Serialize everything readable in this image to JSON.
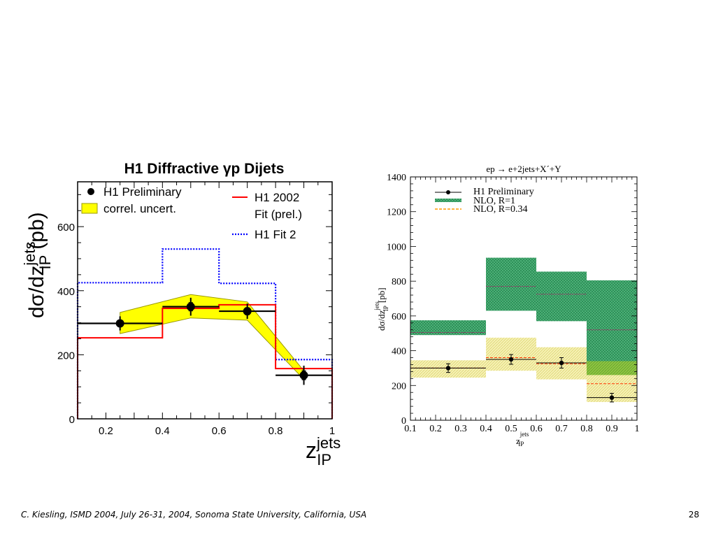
{
  "chart_data": [
    {
      "type": "step",
      "title": "H1 Diffractive γp Dijets",
      "ylabel": "dσ/dz",
      "ylabel_sup": "jets",
      "ylabel_sub": "IP",
      "ylabel_unit": "(pb)",
      "xlabel": "z",
      "xlabel_sup": "jets",
      "xlabel_sub": "IP",
      "xlim": [
        0.1,
        1.0
      ],
      "ylim": [
        0,
        740
      ],
      "xticks": [
        "0.2",
        "0.4",
        "0.6",
        "0.8",
        "1"
      ],
      "yticks": [
        "0",
        "200",
        "400",
        "600"
      ],
      "grid": false,
      "legend": [
        {
          "label": "H1 Preliminary",
          "marker": "dot"
        },
        {
          "label": "correl. uncert.",
          "marker": "yellow-box"
        },
        {
          "label": "H1 2002",
          "marker": "red-line"
        },
        {
          "label": "Fit (prel.)",
          "marker": "none"
        },
        {
          "label": "H1 Fit 2",
          "marker": "blue-dotted"
        }
      ],
      "colors": {
        "data": "#000000",
        "band": "#ffff00",
        "band_edge": "#999900",
        "fit2002": "#ff0000",
        "fit2": "#0000ff"
      },
      "series": [
        {
          "name": "H1 Preliminary",
          "kind": "points",
          "bins": [
            [
              0.1,
              0.4
            ],
            [
              0.4,
              0.6
            ],
            [
              0.6,
              0.8
            ],
            [
              0.8,
              1.0
            ]
          ],
          "x": [
            0.25,
            0.5,
            0.7,
            0.9
          ],
          "y": [
            298,
            350,
            336,
            136
          ],
          "yerr": [
            22,
            28,
            24,
            30
          ]
        },
        {
          "name": "correl. uncert.",
          "kind": "band",
          "x": [
            0.25,
            0.5,
            0.7,
            0.9
          ],
          "lo": [
            266,
            315,
            308,
            123
          ],
          "hi": [
            332,
            388,
            365,
            150
          ]
        },
        {
          "name": "H1 2002 Fit (prel.)",
          "kind": "step",
          "edges": [
            0.1,
            0.4,
            0.6,
            0.8,
            1.0
          ],
          "values": [
            253,
            345,
            356,
            157
          ]
        },
        {
          "name": "H1 Fit 2",
          "kind": "step",
          "edges": [
            0.1,
            0.4,
            0.6,
            0.8,
            1.0
          ],
          "values": [
            425,
            530,
            423,
            185
          ]
        }
      ]
    },
    {
      "type": "step",
      "title": "ep → e+2jets+X´+Y",
      "ylabel": "dσ/dz",
      "ylabel_sup": "jets",
      "ylabel_sub": "IP",
      "ylabel_unit": "[pb]",
      "xlabel": "z",
      "xlabel_sup": "jets",
      "xlabel_sub": "IP",
      "xlim": [
        0.1,
        1.0
      ],
      "ylim": [
        0,
        1400
      ],
      "xticks": [
        "0.1",
        "0.2",
        "0.3",
        "0.4",
        "0.5",
        "0.6",
        "0.7",
        "0.8",
        "0.9",
        "1"
      ],
      "yticks": [
        "0",
        "200",
        "400",
        "600",
        "800",
        "1000",
        "1200",
        "1400"
      ],
      "grid": false,
      "legend": [
        {
          "label": "H1 Preliminary",
          "marker": "dot-err"
        },
        {
          "label": "NLO, R=1",
          "marker": "green-hatch"
        },
        {
          "label": "NLO, R=0.34",
          "marker": "orange-dashed"
        }
      ],
      "colors": {
        "data": "#000000",
        "nlo_r1": "#2e9e5e",
        "nlo_r1_line": "#993366",
        "nlo_r034_band": "#f0e88a",
        "nlo_r034_line": "#ff3300"
      },
      "series": [
        {
          "name": "H1 Preliminary",
          "kind": "points",
          "bins": [
            [
              0.1,
              0.4
            ],
            [
              0.4,
              0.6
            ],
            [
              0.6,
              0.8
            ],
            [
              0.8,
              1.0
            ]
          ],
          "x": [
            0.25,
            0.5,
            0.7,
            0.9
          ],
          "y": [
            300,
            350,
            330,
            130
          ],
          "yerr": [
            25,
            28,
            30,
            25
          ]
        },
        {
          "name": "NLO, R=1",
          "kind": "band",
          "edges": [
            0.1,
            0.4,
            0.6,
            0.8,
            1.0
          ],
          "lo": [
            490,
            630,
            570,
            260
          ],
          "hi": [
            575,
            935,
            855,
            805
          ],
          "central": [
            505,
            770,
            725,
            520
          ]
        },
        {
          "name": "NLO, R=0.34",
          "kind": "band",
          "edges": [
            0.1,
            0.4,
            0.6,
            0.8,
            1.0
          ],
          "lo": [
            245,
            285,
            235,
            105
          ],
          "hi": [
            345,
            475,
            420,
            340
          ],
          "central": [
            300,
            360,
            325,
            210
          ]
        }
      ]
    }
  ],
  "footer": {
    "left": "C. Kiesling, ISMD 2004, July 26-31, 2004, Sonoma State University, California, USA",
    "page": "28"
  }
}
